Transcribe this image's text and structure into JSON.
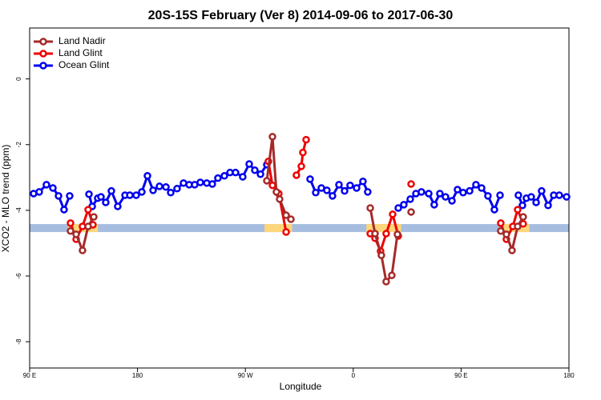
{
  "chart_data": {
    "type": "line",
    "title": "20S-15S February (Ver 8)   2014-09-06 to 2017-06-30",
    "xlabel": "Longitude",
    "ylabel": "XCO2 - MLO trend (ppm)",
    "xlim": [
      90,
      540
    ],
    "ylim": [
      -8.8,
      1.55
    ],
    "xticks": [
      {
        "value": 90,
        "label": "90 E"
      },
      180,
      {
        "value": 270,
        "label": "90 W"
      },
      {
        "value": 360,
        "label": "0"
      },
      {
        "value": 450,
        "label": "90 E"
      },
      {
        "value": 540,
        "label": "180"
      }
    ],
    "yticks": [
      0,
      -2,
      -4,
      -6,
      -8
    ],
    "legend": "top-left",
    "land_mask": {
      "level": -4.54,
      "ocean_color": "#a6bddf",
      "land_color": "#fdd67a",
      "land": [
        [
          122,
          147
        ],
        [
          286,
          309
        ],
        [
          371,
          400
        ],
        [
          483,
          507
        ]
      ]
    },
    "series": [
      {
        "name": "Land Nadir",
        "color": "#a52a2a",
        "x": [
          124.1,
          128.8,
          134.1,
          138.8,
          143.5,
          null,
          287.9,
          292.6,
          295.9,
          298.6,
          304.0,
          308.0,
          null,
          374.2,
          378.2,
          383.5,
          387.5,
          392.2,
          396.9,
          null,
          408.3,
          null,
          483.1,
          487.8,
          492.5,
          497.2,
          501.8
        ],
        "values": [
          -4.63,
          -4.73,
          -5.22,
          -4.49,
          -4.2,
          null,
          -3.1,
          -1.76,
          -3.44,
          -3.66,
          -4.15,
          -4.27,
          null,
          -3.93,
          -4.71,
          -5.37,
          -6.17,
          -5.98,
          -4.73,
          null,
          -4.05,
          null,
          -4.63,
          -4.73,
          -5.22,
          -4.49,
          -4.2
        ]
      },
      {
        "name": "Land Glint",
        "color": "#ee0000",
        "x": [
          124.1,
          128.8,
          134.1,
          138.8,
          142.8,
          null,
          289.2,
          292.6,
          297.9,
          304.0,
          null,
          312.6,
          316.7,
          318.0,
          320.7,
          null,
          374.2,
          378.2,
          382.8,
          387.5,
          392.9,
          397.6,
          null,
          408.3,
          null,
          483.1,
          487.8,
          493.2,
          497.2,
          501.8
        ],
        "values": [
          -4.39,
          -4.88,
          -4.49,
          -3.98,
          -4.44,
          null,
          -2.51,
          -3.24,
          -3.49,
          -4.66,
          null,
          -2.93,
          -2.66,
          -2.24,
          -1.85,
          null,
          -4.71,
          -4.85,
          -5.24,
          -4.71,
          -4.12,
          -4.78,
          null,
          -3.2,
          null,
          -4.39,
          -4.88,
          -4.49,
          -3.98,
          -4.41
        ]
      },
      {
        "name": "Ocean Glint",
        "color": "#0000ee",
        "x": [
          93.3,
          98.0,
          104.0,
          109.4,
          114.1,
          118.7,
          123.4,
          null,
          139.5,
          142.2,
          146.8,
          149.5,
          153.5,
          158.2,
          163.5,
          169.6,
          173.6,
          178.9,
          183.6,
          188.3,
          193.0,
          198.3,
          203.7,
          207.7,
          213.0,
          218.4,
          223.1,
          227.7,
          232.4,
          237.8,
          242.4,
          247.1,
          252.5,
          257.2,
          261.8,
          267.8,
          273.2,
          277.9,
          282.6,
          287.9,
          null,
          324.0,
          328.7,
          333.4,
          338.0,
          342.7,
          348.1,
          352.8,
          357.4,
          362.8,
          368.1,
          372.1,
          null,
          397.6,
          402.2,
          407.6,
          412.3,
          416.9,
          423.0,
          427.6,
          432.3,
          437.0,
          442.4,
          447.0,
          451.7,
          457.1,
          462.4,
          467.1,
          472.4,
          477.8,
          482.5,
          null,
          497.8,
          501.2,
          504.5,
          508.5,
          512.6,
          517.2,
          522.6,
          527.3,
          531.9,
          538.0
        ],
        "values": [
          -3.49,
          -3.44,
          -3.22,
          -3.32,
          -3.56,
          -3.98,
          -3.56,
          null,
          -3.51,
          -3.88,
          -3.63,
          -3.59,
          -3.76,
          -3.41,
          -3.88,
          -3.54,
          -3.54,
          -3.54,
          -3.44,
          -2.95,
          -3.39,
          -3.27,
          -3.29,
          -3.46,
          -3.34,
          -3.17,
          -3.22,
          -3.22,
          -3.15,
          -3.17,
          -3.2,
          -3.02,
          -2.95,
          -2.85,
          -2.85,
          -2.98,
          -2.59,
          -2.78,
          -2.9,
          -2.61,
          null,
          -3.05,
          -3.46,
          -3.32,
          -3.39,
          -3.56,
          -3.22,
          -3.41,
          -3.24,
          -3.32,
          -3.12,
          -3.44,
          null,
          -3.93,
          -3.83,
          -3.66,
          -3.49,
          -3.44,
          -3.49,
          -3.83,
          -3.49,
          -3.59,
          -3.71,
          -3.37,
          -3.46,
          -3.41,
          -3.22,
          -3.32,
          -3.56,
          -3.98,
          -3.54,
          null,
          -3.54,
          -3.85,
          -3.63,
          -3.59,
          -3.76,
          -3.41,
          -3.85,
          -3.54,
          -3.54,
          -3.59
        ]
      }
    ]
  }
}
